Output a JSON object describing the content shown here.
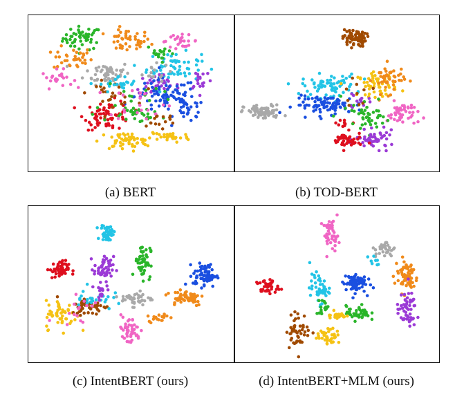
{
  "chart_data": [
    {
      "type": "scatter",
      "caption": "(a) BERT",
      "xlim": [
        0,
        100
      ],
      "ylim": [
        0,
        100
      ],
      "clusters": [
        {
          "color": "#2ab52a",
          "x": 25,
          "y": 88,
          "sx": 5,
          "sy": 4,
          "n": 50
        },
        {
          "color": "#f08a1a",
          "x": 48,
          "y": 86,
          "sx": 6,
          "sy": 4,
          "n": 45
        },
        {
          "color": "#f08a1a",
          "x": 20,
          "y": 74,
          "sx": 5,
          "sy": 4,
          "n": 35
        },
        {
          "color": "#a9a9a9",
          "x": 38,
          "y": 64,
          "sx": 6,
          "sy": 4,
          "n": 55
        },
        {
          "color": "#f065c4",
          "x": 12,
          "y": 60,
          "sx": 4,
          "sy": 3,
          "n": 22
        },
        {
          "color": "#22c4e6",
          "x": 72,
          "y": 68,
          "sx": 7,
          "sy": 5,
          "n": 60
        },
        {
          "color": "#2ab52a",
          "x": 66,
          "y": 78,
          "sx": 4,
          "sy": 3,
          "n": 18
        },
        {
          "color": "#f065c4",
          "x": 75,
          "y": 86,
          "sx": 5,
          "sy": 2,
          "n": 25
        },
        {
          "color": "#9b3ad6",
          "x": 63,
          "y": 55,
          "sx": 6,
          "sy": 4,
          "n": 35
        },
        {
          "color": "#1a4fe0",
          "x": 68,
          "y": 48,
          "sx": 8,
          "sy": 6,
          "n": 75
        },
        {
          "color": "#1a4fe0",
          "x": 80,
          "y": 38,
          "sx": 4,
          "sy": 4,
          "n": 25
        },
        {
          "color": "#de0f1e",
          "x": 38,
          "y": 35,
          "sx": 6,
          "sy": 5,
          "n": 70
        },
        {
          "color": "#a04a00",
          "x": 40,
          "y": 50,
          "sx": 6,
          "sy": 4,
          "n": 25
        },
        {
          "color": "#f5c214",
          "x": 47,
          "y": 17,
          "sx": 7,
          "sy": 3,
          "n": 55
        },
        {
          "color": "#f5c214",
          "x": 70,
          "y": 20,
          "sx": 5,
          "sy": 2,
          "n": 30
        },
        {
          "color": "#2ab52a",
          "x": 56,
          "y": 35,
          "sx": 5,
          "sy": 3,
          "n": 20
        },
        {
          "color": "#9b3ad6",
          "x": 86,
          "y": 60,
          "sx": 3,
          "sy": 4,
          "n": 18
        },
        {
          "color": "#22c4e6",
          "x": 44,
          "y": 56,
          "sx": 5,
          "sy": 3,
          "n": 25
        },
        {
          "color": "#2ab52a",
          "x": 50,
          "y": 45,
          "sx": 8,
          "sy": 8,
          "n": 25
        },
        {
          "color": "#f065c4",
          "x": 55,
          "y": 44,
          "sx": 8,
          "sy": 6,
          "n": 20
        },
        {
          "color": "#a04a00",
          "x": 64,
          "y": 30,
          "sx": 6,
          "sy": 4,
          "n": 15
        },
        {
          "color": "#a9a9a9",
          "x": 60,
          "y": 64,
          "sx": 5,
          "sy": 3,
          "n": 15
        }
      ]
    },
    {
      "type": "scatter",
      "caption": "(b) TOD-BERT",
      "xlim": [
        0,
        100
      ],
      "ylim": [
        0,
        100
      ],
      "clusters": [
        {
          "color": "#a04a00",
          "x": 59,
          "y": 88,
          "sx": 3,
          "sy": 3,
          "n": 70
        },
        {
          "color": "#a9a9a9",
          "x": 12,
          "y": 37,
          "sx": 5,
          "sy": 2.5,
          "n": 80
        },
        {
          "color": "#22c4e6",
          "x": 46,
          "y": 55,
          "sx": 7,
          "sy": 4,
          "n": 70
        },
        {
          "color": "#1a4fe0",
          "x": 46,
          "y": 42,
          "sx": 9,
          "sy": 3,
          "n": 90
        },
        {
          "color": "#f5c214",
          "x": 71,
          "y": 56,
          "sx": 5,
          "sy": 4,
          "n": 55
        },
        {
          "color": "#f08a1a",
          "x": 77,
          "y": 60,
          "sx": 4,
          "sy": 5,
          "n": 45
        },
        {
          "color": "#f065c4",
          "x": 84,
          "y": 36,
          "sx": 4,
          "sy": 4,
          "n": 45
        },
        {
          "color": "#2ab52a",
          "x": 67,
          "y": 33,
          "sx": 4,
          "sy": 5,
          "n": 30
        },
        {
          "color": "#9b3ad6",
          "x": 70,
          "y": 18,
          "sx": 5,
          "sy": 3,
          "n": 50
        },
        {
          "color": "#de0f1e",
          "x": 55,
          "y": 17,
          "sx": 4,
          "sy": 3,
          "n": 50
        },
        {
          "color": "#de0f1e",
          "x": 54,
          "y": 30,
          "sx": 2,
          "sy": 2,
          "n": 10
        },
        {
          "color": "#9b3ad6",
          "x": 61,
          "y": 44,
          "sx": 3,
          "sy": 3,
          "n": 12
        },
        {
          "color": "#2ab52a",
          "x": 58,
          "y": 38,
          "sx": 4,
          "sy": 4,
          "n": 12
        },
        {
          "color": "#a04a00",
          "x": 60,
          "y": 50,
          "sx": 4,
          "sy": 4,
          "n": 10
        }
      ]
    },
    {
      "type": "scatter",
      "caption": "(c) IntentBERT (ours)",
      "xlim": [
        0,
        100
      ],
      "ylim": [
        0,
        100
      ],
      "clusters": [
        {
          "color": "#22c4e6",
          "x": 38,
          "y": 85,
          "sx": 1.8,
          "sy": 3,
          "n": 45
        },
        {
          "color": "#2ab52a",
          "x": 56,
          "y": 66,
          "sx": 2,
          "sy": 6,
          "n": 55
        },
        {
          "color": "#de0f1e",
          "x": 13,
          "y": 60,
          "sx": 2.5,
          "sy": 3,
          "n": 50
        },
        {
          "color": "#9b3ad6",
          "x": 36,
          "y": 61,
          "sx": 2.5,
          "sy": 4,
          "n": 45
        },
        {
          "color": "#1a4fe0",
          "x": 88,
          "y": 56,
          "sx": 3,
          "sy": 4,
          "n": 70
        },
        {
          "color": "#a9a9a9",
          "x": 53,
          "y": 40,
          "sx": 4,
          "sy": 2.5,
          "n": 40
        },
        {
          "color": "#f08a1a",
          "x": 78,
          "y": 41,
          "sx": 5,
          "sy": 3,
          "n": 55
        },
        {
          "color": "#f5c214",
          "x": 14,
          "y": 29,
          "sx": 4,
          "sy": 5,
          "n": 50
        },
        {
          "color": "#a04a00",
          "x": 29,
          "y": 35,
          "sx": 5,
          "sy": 3,
          "n": 50
        },
        {
          "color": "#22c4e6",
          "x": 30,
          "y": 40,
          "sx": 5,
          "sy": 4,
          "n": 25
        },
        {
          "color": "#9b3ad6",
          "x": 35,
          "y": 47,
          "sx": 2,
          "sy": 3,
          "n": 18
        },
        {
          "color": "#f065c4",
          "x": 49,
          "y": 18,
          "sx": 3,
          "sy": 5,
          "n": 50
        },
        {
          "color": "#f08a1a",
          "x": 64,
          "y": 27,
          "sx": 2.5,
          "sy": 1.5,
          "n": 18
        },
        {
          "color": "#f065c4",
          "x": 22,
          "y": 33,
          "sx": 5,
          "sy": 6,
          "n": 15
        }
      ]
    },
    {
      "type": "scatter",
      "caption": "(d) IntentBERT+MLM (ours)",
      "xlim": [
        0,
        100
      ],
      "ylim": [
        0,
        100
      ],
      "clusters": [
        {
          "color": "#f065c4",
          "x": 47,
          "y": 84,
          "sx": 2,
          "sy": 5,
          "n": 45
        },
        {
          "color": "#a9a9a9",
          "x": 75,
          "y": 74,
          "sx": 2.5,
          "sy": 3,
          "n": 30
        },
        {
          "color": "#de0f1e",
          "x": 14,
          "y": 48,
          "sx": 3,
          "sy": 2.5,
          "n": 40
        },
        {
          "color": "#22c4e6",
          "x": 41,
          "y": 47,
          "sx": 2.5,
          "sy": 5,
          "n": 45
        },
        {
          "color": "#1a4fe0",
          "x": 59,
          "y": 51,
          "sx": 3,
          "sy": 3.5,
          "n": 70
        },
        {
          "color": "#f08a1a",
          "x": 86,
          "y": 56,
          "sx": 3,
          "sy": 6,
          "n": 65
        },
        {
          "color": "#9b3ad6",
          "x": 86,
          "y": 32,
          "sx": 2.5,
          "sy": 6,
          "n": 55
        },
        {
          "color": "#2ab52a",
          "x": 61,
          "y": 30,
          "sx": 3,
          "sy": 2.5,
          "n": 40
        },
        {
          "color": "#f5c214",
          "x": 50,
          "y": 29,
          "sx": 2.5,
          "sy": 2,
          "n": 25
        },
        {
          "color": "#f5c214",
          "x": 46,
          "y": 14,
          "sx": 3,
          "sy": 2.5,
          "n": 40
        },
        {
          "color": "#a04a00",
          "x": 30,
          "y": 18,
          "sx": 3,
          "sy": 6,
          "n": 50
        },
        {
          "color": "#2ab52a",
          "x": 43,
          "y": 35,
          "sx": 2,
          "sy": 3,
          "n": 15
        },
        {
          "color": "#22c4e6",
          "x": 70,
          "y": 66,
          "sx": 2,
          "sy": 2,
          "n": 8
        }
      ]
    }
  ]
}
